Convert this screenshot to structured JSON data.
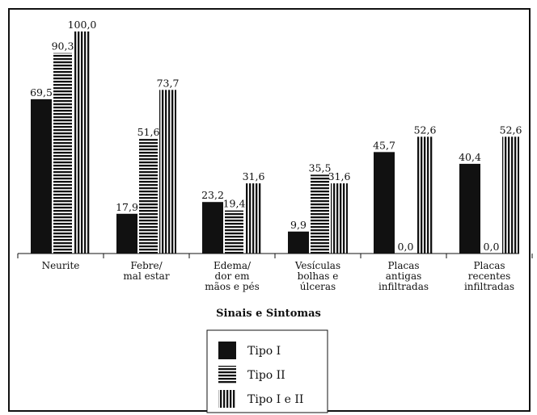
{
  "chart_data": {
    "type": "bar",
    "categories": [
      [
        "Neurite"
      ],
      [
        "Febre/",
        "mal estar"
      ],
      [
        "Edema/",
        "dor em",
        "mãos e pés"
      ],
      [
        "Vesículas",
        "bolhas e",
        "úlceras"
      ],
      [
        "Placas",
        "antigas",
        "infiltradas"
      ],
      [
        "Placas",
        "recentes",
        "infiltradas"
      ]
    ],
    "series": [
      {
        "name": "Tipo I",
        "values": [
          69.5,
          17.9,
          23.2,
          9.9,
          45.7,
          40.4
        ],
        "labels": [
          "69,5",
          "17,9",
          "23,2",
          "9,9",
          "45,7",
          "40,4"
        ],
        "pattern": "solid"
      },
      {
        "name": "Tipo II",
        "values": [
          90.3,
          51.6,
          19.4,
          35.5,
          0.0,
          0.0
        ],
        "labels": [
          "90,3",
          "51,6",
          "19,4",
          "35,5",
          "0,0",
          "0,0"
        ],
        "pattern": "horizontal-stripes"
      },
      {
        "name": "Tipo I e II",
        "values": [
          100.0,
          73.7,
          31.6,
          31.6,
          52.6,
          52.6
        ],
        "labels": [
          "100,0",
          "73,7",
          "31,6",
          "31,6",
          "52,6",
          "52,6"
        ],
        "pattern": "vertical-stripes"
      }
    ],
    "title": "",
    "xlabel": "Sinais e Sintomas",
    "ylabel": "",
    "ylim": [
      0,
      100
    ],
    "grid": false,
    "legend": "bottom-center",
    "colors": {
      "bar": "#111111",
      "background": "#ffffff"
    }
  }
}
